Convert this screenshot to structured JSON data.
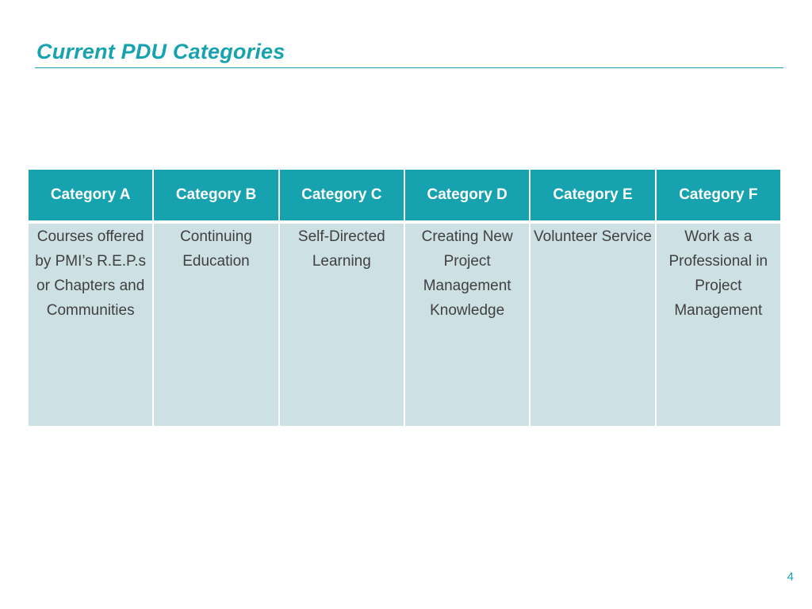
{
  "slide": {
    "title": "Current PDU Categories",
    "page_number": "4"
  },
  "table": {
    "headers": [
      "Category A",
      "Category B",
      "Category C",
      "Category D",
      "Category E",
      "Category F"
    ],
    "cells": [
      "Courses offered by PMI’s R.E.P.s or Chapters and Communities",
      "Continuing Education",
      "Self-Directed Learning",
      "Creating New Project Management Knowledge",
      "Volunteer Service",
      "Work as a Professional in Project Management"
    ]
  },
  "colors": {
    "accent": "#17a2b0",
    "cell_fill": "#cde0e4",
    "body_text": "#404040"
  }
}
